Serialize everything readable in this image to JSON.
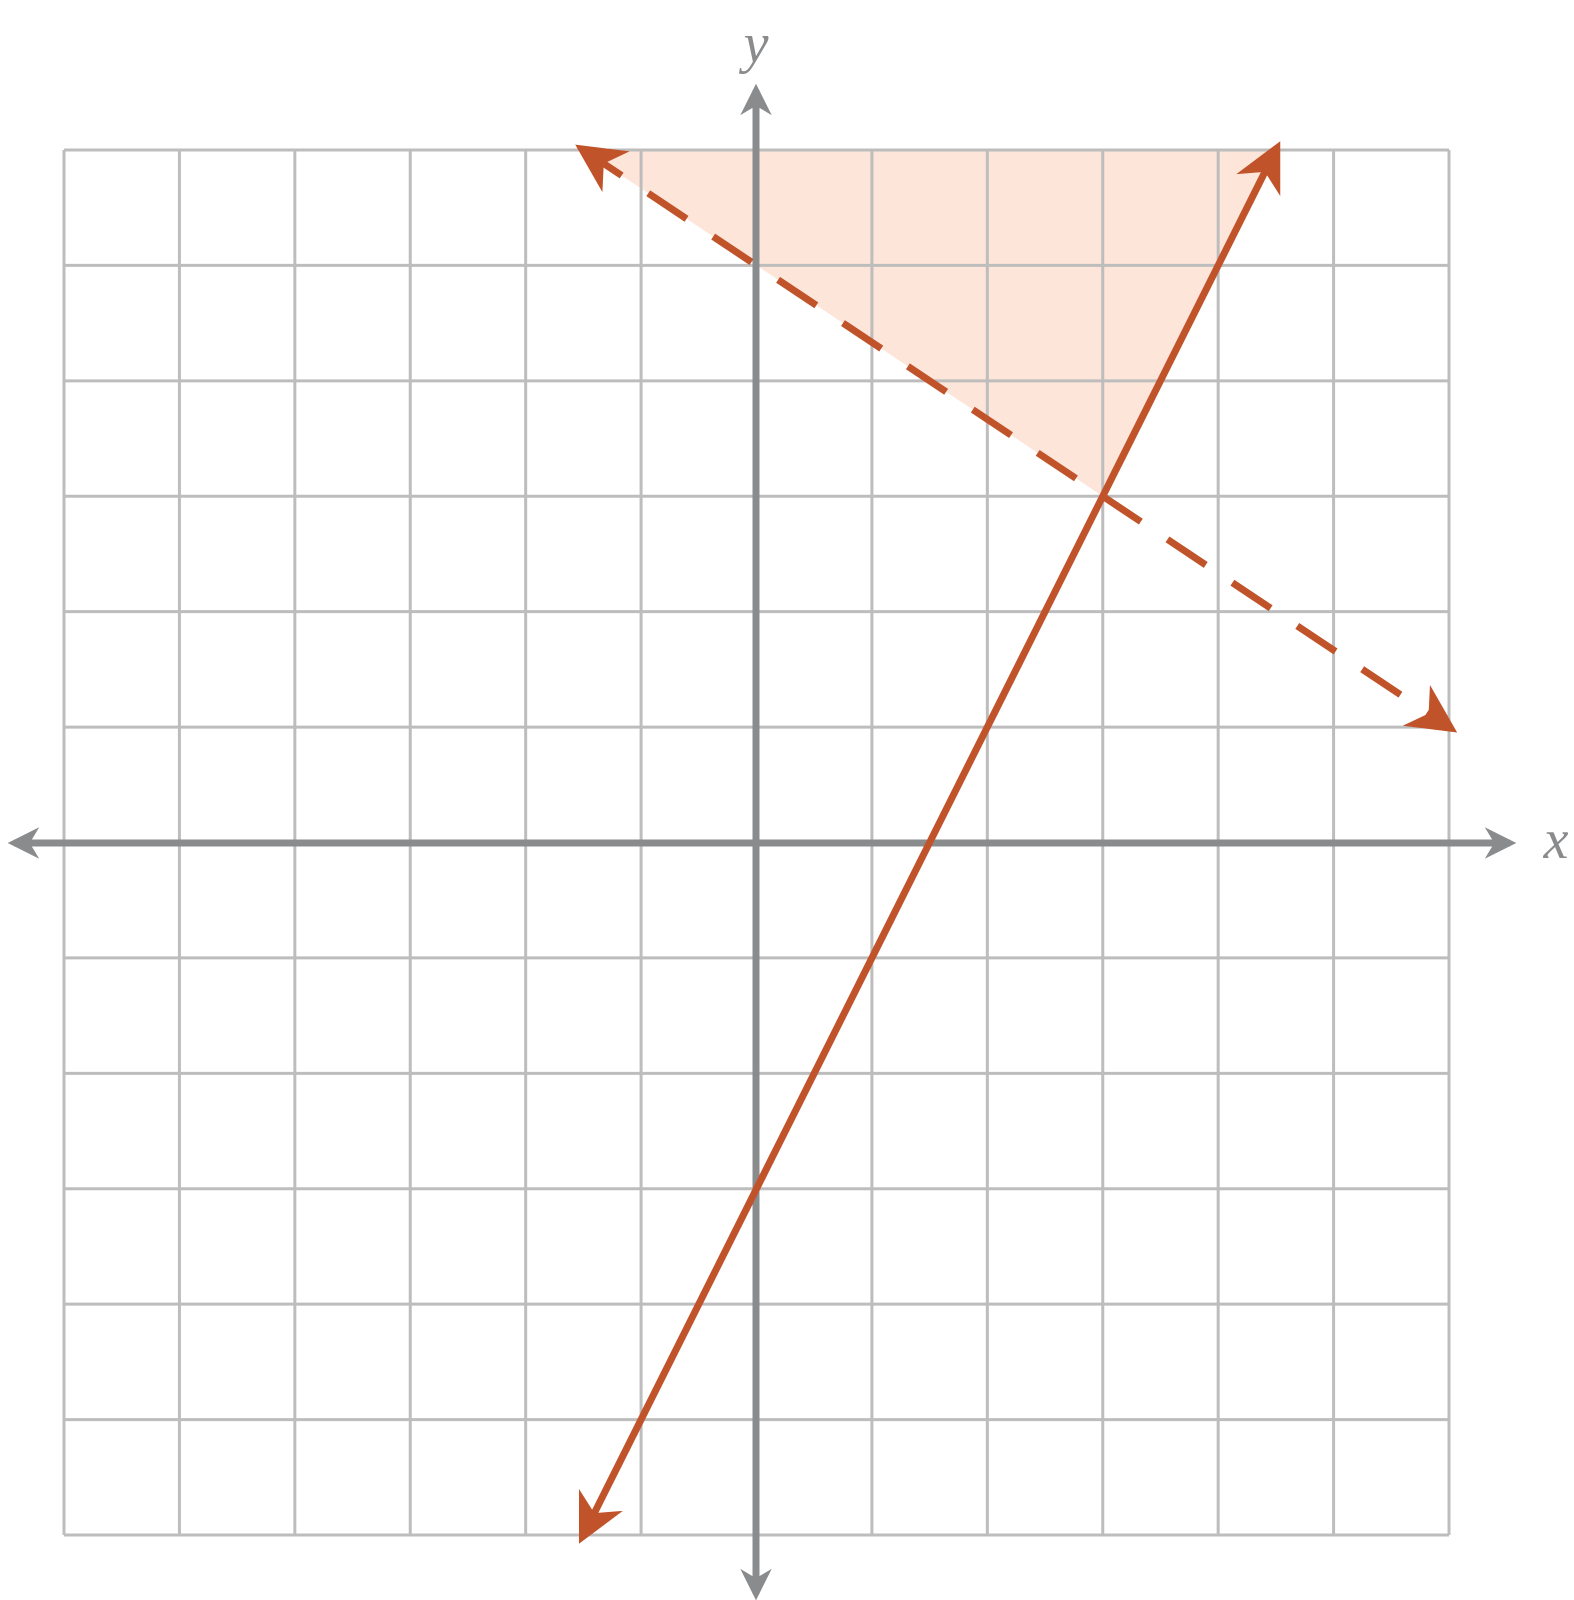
{
  "chart_data": {
    "type": "line",
    "x_label": "x",
    "y_label": "y",
    "xlim": [
      -6,
      6
    ],
    "ylim": [
      -6,
      6
    ],
    "xticks": [
      -6,
      -5,
      -4,
      -3,
      -2,
      -1,
      0,
      1,
      2,
      3,
      4,
      5,
      6
    ],
    "yticks": [
      -6,
      -5,
      -4,
      -3,
      -2,
      -1,
      0,
      1,
      2,
      3,
      4,
      5,
      6
    ],
    "grid": true,
    "series": [
      {
        "color": "#c0532a",
        "dashed": false,
        "x": [
          -1.5,
          4.5
        ],
        "values": [
          -6,
          6
        ]
      },
      {
        "color": "#c0532a",
        "dashed": true,
        "x": [
          -1.5,
          6
        ],
        "values": [
          6,
          1
        ]
      }
    ],
    "shaded_region": {
      "color": "#fde5d9",
      "x": [
        -1.5,
        4.5,
        3
      ],
      "values": [
        6,
        6,
        3
      ]
    }
  }
}
